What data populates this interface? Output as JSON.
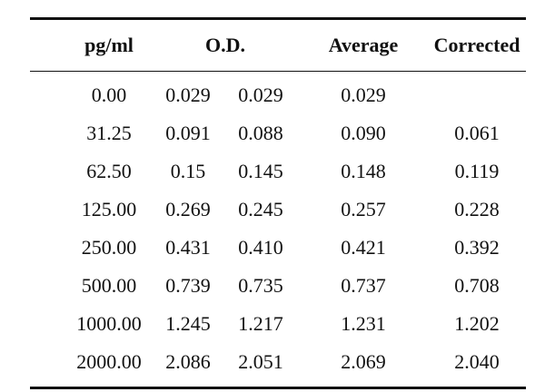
{
  "table": {
    "headers": {
      "pg": "pg/ml",
      "od": "O.D.",
      "average": "Average",
      "corrected": "Corrected"
    },
    "rows": [
      {
        "pg": "0.00",
        "od1": "0.029",
        "od2": "0.029",
        "average": "0.029",
        "corrected": ""
      },
      {
        "pg": "31.25",
        "od1": "0.091",
        "od2": "0.088",
        "average": "0.090",
        "corrected": "0.061"
      },
      {
        "pg": "62.50",
        "od1": "0.15",
        "od2": "0.145",
        "average": "0.148",
        "corrected": "0.119"
      },
      {
        "pg": "125.00",
        "od1": "0.269",
        "od2": "0.245",
        "average": "0.257",
        "corrected": "0.228"
      },
      {
        "pg": "250.00",
        "od1": "0.431",
        "od2": "0.410",
        "average": "0.421",
        "corrected": "0.392"
      },
      {
        "pg": "500.00",
        "od1": "0.739",
        "od2": "0.735",
        "average": "0.737",
        "corrected": "0.708"
      },
      {
        "pg": "1000.00",
        "od1": "1.245",
        "od2": "1.217",
        "average": "1.231",
        "corrected": "1.202"
      },
      {
        "pg": "2000.00",
        "od1": "2.086",
        "od2": "2.051",
        "average": "2.069",
        "corrected": "2.040"
      }
    ]
  }
}
